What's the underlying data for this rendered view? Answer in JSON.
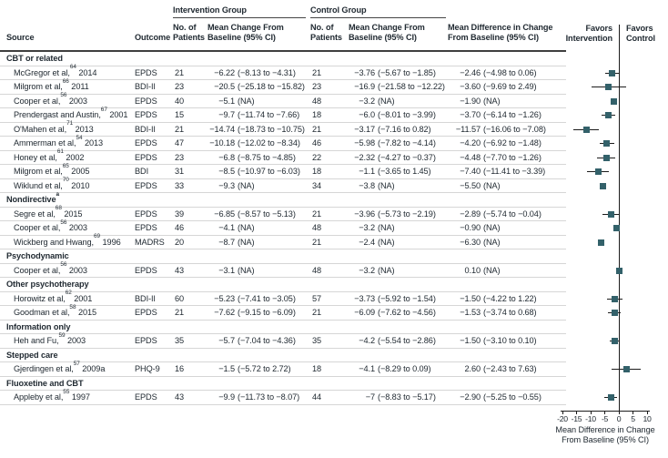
{
  "table": {
    "group_headers": {
      "intervention": "Intervention Group",
      "control": "Control Group"
    },
    "columns": {
      "source": "Source",
      "outcome": "Outcome",
      "patients": "No. of\nPatients",
      "mean_change": "Mean Change From\nBaseline (95% CI)",
      "mean_diff": "Mean Difference in Change\nFrom Baseline (95% CI)"
    },
    "rows": [
      {
        "type": "section",
        "label": "CBT or related",
        "sup": ""
      },
      {
        "type": "study",
        "source": "McGregor et al,",
        "sup": "64",
        "year": "2014",
        "outcome": "EPDS",
        "int_n": "21",
        "int_est": "−6.22",
        "int_ci": "(−8.13 to −4.31)",
        "ctrl_n": "21",
        "ctrl_est": "−3.76",
        "ctrl_ci": "(−5.67 to −1.85)",
        "diff_est": "−2.46",
        "diff_ci": "(−4.98 to 0.06)",
        "est": -2.46,
        "lo": -4.98,
        "hi": 0.06
      },
      {
        "type": "study",
        "source": "Milgrom et al,",
        "sup": "66",
        "year": "2011",
        "outcome": "BDI-II",
        "int_n": "23",
        "int_est": "−20.5",
        "int_ci": "(−25.18 to −15.82)",
        "ctrl_n": "23",
        "ctrl_est": "−16.9",
        "ctrl_ci": "(−21.58 to −12.22)",
        "diff_est": "−3.60",
        "diff_ci": "(−9.69 to 2.49)",
        "est": -3.6,
        "lo": -9.69,
        "hi": 2.49
      },
      {
        "type": "study",
        "source": "Cooper et al,",
        "sup": "56",
        "year": "2003",
        "outcome": "EPDS",
        "int_n": "40",
        "int_est": "−5.1",
        "int_ci": "(NA)",
        "ctrl_n": "48",
        "ctrl_est": "−3.2",
        "ctrl_ci": "(NA)",
        "diff_est": "−1.90",
        "diff_ci": "(NA)",
        "est": -1.9,
        "lo": null,
        "hi": null
      },
      {
        "type": "study",
        "source": "Prendergast and Austin,",
        "sup": "67",
        "year": "2001",
        "outcome": "EPDS",
        "int_n": "15",
        "int_est": "−9.7",
        "int_ci": "(−11.74 to −7.66)",
        "ctrl_n": "18",
        "ctrl_est": "−6.0",
        "ctrl_ci": "(−8.01 to −3.99)",
        "diff_est": "−3.70",
        "diff_ci": "(−6.14 to −1.26)",
        "est": -3.7,
        "lo": -6.14,
        "hi": -1.26
      },
      {
        "type": "study",
        "source": "O'Mahen et al,",
        "sup": "71",
        "year": "2013",
        "outcome": "BDI-II",
        "int_n": "21",
        "int_est": "−14.74",
        "int_ci": "(−18.73 to −10.75)",
        "ctrl_n": "21",
        "ctrl_est": "−3.17",
        "ctrl_ci": "(−7.16 to 0.82)",
        "diff_est": "−11.57",
        "diff_ci": "(−16.06 to −7.08)",
        "est": -11.57,
        "lo": -16.06,
        "hi": -7.08
      },
      {
        "type": "study",
        "source": "Ammerman et al,",
        "sup": "54",
        "year": "2013",
        "outcome": "EPDS",
        "int_n": "47",
        "int_est": "−10.18",
        "int_ci": "(−12.02 to −8.34)",
        "ctrl_n": "46",
        "ctrl_est": "−5.98",
        "ctrl_ci": "(−7.82 to −4.14)",
        "diff_est": "−4.20",
        "diff_ci": "(−6.92 to −1.48)",
        "est": -4.2,
        "lo": -6.92,
        "hi": -1.48
      },
      {
        "type": "study",
        "source": "Honey et al,",
        "sup": "61",
        "year": "2002",
        "outcome": "EPDS",
        "int_n": "23",
        "int_est": "−6.8",
        "int_ci": "(−8.75 to −4.85)",
        "ctrl_n": "22",
        "ctrl_est": "−2.32",
        "ctrl_ci": "(−4.27 to −0.37)",
        "diff_est": "−4.48",
        "diff_ci": "(−7.70 to −1.26)",
        "est": -4.48,
        "lo": -7.7,
        "hi": -1.26
      },
      {
        "type": "study",
        "source": "Milgrom et al,",
        "sup": "65",
        "year": "2005",
        "outcome": "BDI",
        "int_n": "31",
        "int_est": "−8.5",
        "int_ci": "(−10.97 to −6.03)",
        "ctrl_n": "18",
        "ctrl_est": "−1.1",
        "ctrl_ci": "(−3.65 to 1.45)",
        "diff_est": "−7.40",
        "diff_ci": "(−11.41 to −3.39)",
        "est": -7.4,
        "lo": -11.41,
        "hi": -3.39
      },
      {
        "type": "study",
        "source": "Wiklund et al,",
        "sup": "70",
        "year": "2010",
        "outcome": "EPDS",
        "int_n": "33",
        "int_est": "−9.3",
        "int_ci": "(NA)",
        "ctrl_n": "34",
        "ctrl_est": "−3.8",
        "ctrl_ci": "(NA)",
        "diff_est": "−5.50",
        "diff_ci": "(NA)",
        "est": -5.5,
        "lo": null,
        "hi": null
      },
      {
        "type": "section",
        "label": "Nondirective",
        "sup": "a"
      },
      {
        "type": "study",
        "source": "Segre et al,",
        "sup": "68",
        "year": "2015",
        "outcome": "EPDS",
        "int_n": "39",
        "int_est": "−6.85",
        "int_ci": "(−8.57 to −5.13)",
        "ctrl_n": "21",
        "ctrl_est": "−3.96",
        "ctrl_ci": "(−5.73 to −2.19)",
        "diff_est": "−2.89",
        "diff_ci": "(−5.74 to −0.04)",
        "est": -2.89,
        "lo": -5.74,
        "hi": -0.04
      },
      {
        "type": "study",
        "source": "Cooper et al,",
        "sup": "56",
        "year": "2003",
        "outcome": "EPDS",
        "int_n": "46",
        "int_est": "−4.1",
        "int_ci": "(NA)",
        "ctrl_n": "48",
        "ctrl_est": "−3.2",
        "ctrl_ci": "(NA)",
        "diff_est": "−0.90",
        "diff_ci": "(NA)",
        "est": -0.9,
        "lo": null,
        "hi": null
      },
      {
        "type": "study",
        "source": "Wickberg and Hwang,",
        "sup": "69",
        "year": "1996",
        "outcome": "MADRS",
        "int_n": "20",
        "int_est": "−8.7",
        "int_ci": "(NA)",
        "ctrl_n": "21",
        "ctrl_est": "−2.4",
        "ctrl_ci": "(NA)",
        "diff_est": "−6.30",
        "diff_ci": "(NA)",
        "est": -6.3,
        "lo": null,
        "hi": null
      },
      {
        "type": "section",
        "label": "Psychodynamic",
        "sup": ""
      },
      {
        "type": "study",
        "source": "Cooper et al,",
        "sup": "56",
        "year": "2003",
        "outcome": "EPDS",
        "int_n": "43",
        "int_est": "−3.1",
        "int_ci": "(NA)",
        "ctrl_n": "48",
        "ctrl_est": "−3.2",
        "ctrl_ci": "(NA)",
        "diff_est": "0.10",
        "diff_ci": "(NA)",
        "est": 0.1,
        "lo": null,
        "hi": null
      },
      {
        "type": "section",
        "label": "Other psychotherapy",
        "sup": ""
      },
      {
        "type": "study",
        "source": "Horowitz et al,",
        "sup": "62",
        "year": "2001",
        "outcome": "BDI-II",
        "int_n": "60",
        "int_est": "−5.23",
        "int_ci": "(−7.41 to −3.05)",
        "ctrl_n": "57",
        "ctrl_est": "−3.73",
        "ctrl_ci": "(−5.92 to −1.54)",
        "diff_est": "−1.50",
        "diff_ci": "(−4.22 to 1.22)",
        "est": -1.5,
        "lo": -4.22,
        "hi": 1.22
      },
      {
        "type": "study",
        "source": "Goodman et al,",
        "sup": "58",
        "year": "2015",
        "outcome": "EPDS",
        "int_n": "21",
        "int_est": "−7.62",
        "int_ci": "(−9.15 to −6.09)",
        "ctrl_n": "21",
        "ctrl_est": "−6.09",
        "ctrl_ci": "(−7.62 to −4.56)",
        "diff_est": "−1.53",
        "diff_ci": "(−3.74 to 0.68)",
        "est": -1.53,
        "lo": -3.74,
        "hi": 0.68
      },
      {
        "type": "section",
        "label": "Information only",
        "sup": ""
      },
      {
        "type": "study",
        "source": "Heh and Fu,",
        "sup": "59",
        "year": "2003",
        "outcome": "EPDS",
        "int_n": "35",
        "int_est": "−5.7",
        "int_ci": "(−7.04 to −4.36)",
        "ctrl_n": "35",
        "ctrl_est": "−4.2",
        "ctrl_ci": "(−5.54 to −2.86)",
        "diff_est": "−1.50",
        "diff_ci": "(−3.10 to 0.10)",
        "est": -1.5,
        "lo": -3.1,
        "hi": 0.1
      },
      {
        "type": "section",
        "label": "Stepped care",
        "sup": ""
      },
      {
        "type": "study",
        "source": "Gjerdingen et al,",
        "sup": "57",
        "year": "2009a",
        "outcome": "PHQ-9",
        "int_n": "16",
        "int_est": "−1.5",
        "int_ci": "(−5.72 to 2.72)",
        "ctrl_n": "18",
        "ctrl_est": "−4.1",
        "ctrl_ci": "(−8.29 to 0.09)",
        "diff_est": "2.60",
        "diff_ci": "(−2.43 to 7.63)",
        "est": 2.6,
        "lo": -2.43,
        "hi": 7.63
      },
      {
        "type": "section",
        "label": "Fluoxetine and CBT",
        "sup": ""
      },
      {
        "type": "study",
        "source": "Appleby et al,",
        "sup": "55",
        "year": "1997",
        "outcome": "EPDS",
        "int_n": "43",
        "int_est": "−9.9",
        "int_ci": "(−11.73 to −8.07)",
        "ctrl_n": "44",
        "ctrl_est": "−7",
        "ctrl_ci": "(−8.83 to −5.17)",
        "diff_est": "−2.90",
        "diff_ci": "(−5.25 to −0.55)",
        "est": -2.9,
        "lo": -5.25,
        "hi": -0.55
      }
    ]
  },
  "plot": {
    "favors_intervention": "Favors\nIntervention",
    "favors_control": "Favors\nControl",
    "xlabel": "Mean Difference in Change\nFrom Baseline (95% CI)"
  },
  "chart_data": {
    "type": "scatter",
    "title": "",
    "xlabel": "Mean Difference in Change From Baseline (95% CI)",
    "xlim": [
      -20,
      10
    ],
    "grid": false,
    "favors_left": "Favors Intervention",
    "favors_right": "Favors Control",
    "marker_color": "#33616a",
    "xticks": [
      {
        "v": -20,
        "label": "-20"
      },
      {
        "v": -15,
        "label": "-15"
      },
      {
        "v": -10,
        "label": "-10"
      },
      {
        "v": -5,
        "label": "-5"
      },
      {
        "v": 0,
        "label": "0"
      },
      {
        "v": 5,
        "label": "5"
      },
      {
        "v": 10,
        "label": "10"
      }
    ],
    "points": [
      {
        "label": "McGregor et al, 2014",
        "est": -2.46,
        "lo": -4.98,
        "hi": 0.06
      },
      {
        "label": "Milgrom et al, 2011",
        "est": -3.6,
        "lo": -9.69,
        "hi": 2.49
      },
      {
        "label": "Cooper et al, 2003 (CBT)",
        "est": -1.9,
        "lo": null,
        "hi": null
      },
      {
        "label": "Prendergast and Austin, 2001",
        "est": -3.7,
        "lo": -6.14,
        "hi": -1.26
      },
      {
        "label": "O'Mahen et al, 2013",
        "est": -11.57,
        "lo": -16.06,
        "hi": -7.08
      },
      {
        "label": "Ammerman et al, 2013",
        "est": -4.2,
        "lo": -6.92,
        "hi": -1.48
      },
      {
        "label": "Honey et al, 2002",
        "est": -4.48,
        "lo": -7.7,
        "hi": -1.26
      },
      {
        "label": "Milgrom et al, 2005",
        "est": -7.4,
        "lo": -11.41,
        "hi": -3.39
      },
      {
        "label": "Wiklund et al, 2010",
        "est": -5.5,
        "lo": null,
        "hi": null
      },
      {
        "label": "Segre et al, 2015",
        "est": -2.89,
        "lo": -5.74,
        "hi": -0.04
      },
      {
        "label": "Cooper et al, 2003 (nondirective)",
        "est": -0.9,
        "lo": null,
        "hi": null
      },
      {
        "label": "Wickberg and Hwang, 1996",
        "est": -6.3,
        "lo": null,
        "hi": null
      },
      {
        "label": "Cooper et al, 2003 (psychodynamic)",
        "est": 0.1,
        "lo": null,
        "hi": null
      },
      {
        "label": "Horowitz et al, 2001",
        "est": -1.5,
        "lo": -4.22,
        "hi": 1.22
      },
      {
        "label": "Goodman et al, 2015",
        "est": -1.53,
        "lo": -3.74,
        "hi": 0.68
      },
      {
        "label": "Heh and Fu, 2003",
        "est": -1.5,
        "lo": -3.1,
        "hi": 0.1
      },
      {
        "label": "Gjerdingen et al, 2009a",
        "est": 2.6,
        "lo": -2.43,
        "hi": 7.63
      },
      {
        "label": "Appleby et al, 1997",
        "est": -2.9,
        "lo": -5.25,
        "hi": -0.55
      }
    ]
  }
}
